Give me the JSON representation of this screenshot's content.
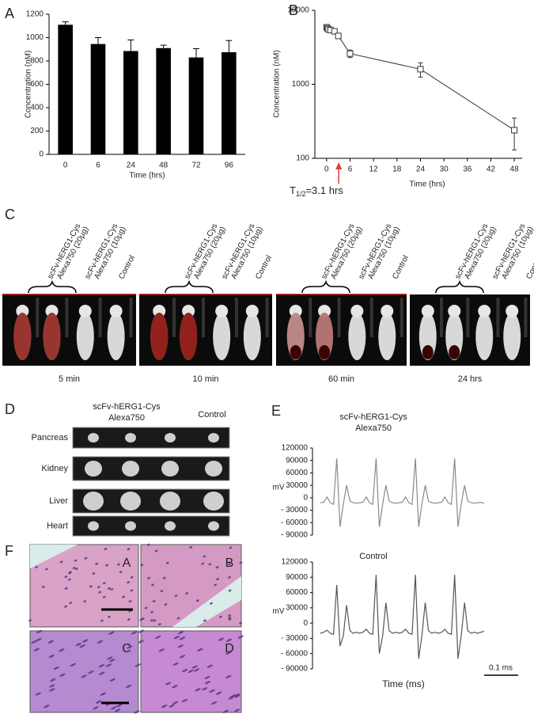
{
  "panel_letters": [
    "A",
    "B",
    "C",
    "D",
    "E",
    "F"
  ],
  "chart_data": [
    {
      "type": "bar",
      "ylabel": "Concentration (nM)",
      "xlabel": "Time (hrs)",
      "categories": [
        "0",
        "6",
        "24",
        "48",
        "72",
        "96"
      ],
      "values": [
        1110,
        945,
        885,
        910,
        830,
        875
      ],
      "errors": [
        25,
        55,
        95,
        25,
        75,
        100
      ],
      "color": "#000000",
      "ylim": [
        0,
        1200
      ],
      "yticks": [
        0,
        200,
        400,
        600,
        800,
        1000,
        1200
      ]
    },
    {
      "type": "line",
      "ylabel": "Concentration (nM)",
      "xlabel": "Time (hrs)",
      "x": [
        0,
        0.25,
        0.5,
        1,
        2,
        3,
        6,
        24,
        48
      ],
      "values": [
        5900,
        5700,
        5500,
        5400,
        5200,
        4500,
        2600,
        1600,
        240
      ],
      "errors": [
        300,
        300,
        300,
        300,
        250,
        300,
        300,
        350,
        110
      ],
      "color": "#333333",
      "log_y": true,
      "ylim": [
        100,
        10000
      ],
      "yticks": [
        100,
        1000,
        10000
      ],
      "xlim": [
        -3,
        50
      ],
      "xticks": [
        0,
        6,
        12,
        18,
        24,
        30,
        36,
        42,
        48
      ],
      "annotation": [
        "T",
        "1/2",
        "=3.1 hrs"
      ],
      "arrow_x": 3.1,
      "arrow_color": "#e8383d"
    },
    {
      "type": "line",
      "title": [
        "scFv-hERG1-Cys",
        "Alexa750"
      ],
      "ylabel": "mV",
      "color": "#8a8a8a",
      "ylim": [
        -90000,
        120000
      ],
      "yticks": [
        120000,
        90000,
        60000,
        30000,
        0,
        {
          "value": -30000,
          "label": "- 30000"
        },
        {
          "value": -60000,
          "label": "- 60000"
        },
        {
          "value": -90000,
          "label": "- 90000"
        }
      ],
      "values": [
        -12000,
        -11000,
        2000,
        -12000,
        -16000,
        95000,
        -70000,
        -15000,
        30000,
        -8000,
        -12000,
        -13000,
        -12000,
        -11000,
        2000,
        -12000,
        -16000,
        95000,
        -70000,
        -15000,
        30000,
        -8000,
        -12000,
        -13000,
        -12000,
        -11000,
        2000,
        -12000,
        -16000,
        95000,
        -70000,
        -15000,
        30000,
        -8000,
        -12000,
        -13000,
        -12000,
        -11000,
        2000,
        -12000,
        -16000,
        95000,
        -70000,
        -15000,
        30000,
        -8000,
        -12000,
        -13000,
        -12000,
        -11000,
        -13000
      ]
    },
    {
      "type": "line",
      "title": [
        "Control"
      ],
      "ylabel": "mV",
      "xlabel": "Time (ms)",
      "scale_bar": "0.1 ms",
      "color": "#555555",
      "ylim": [
        -90000,
        120000
      ],
      "yticks": [
        120000,
        90000,
        60000,
        30000,
        0,
        {
          "value": -30000,
          "label": "- 30000"
        },
        {
          "value": -60000,
          "label": "- 60000"
        },
        {
          "value": -90000,
          "label": "- 90000"
        }
      ],
      "values": [
        -20000,
        -18000,
        -14000,
        -20000,
        -22000,
        75000,
        -45000,
        -25000,
        35000,
        -15000,
        -20000,
        -18000,
        -20000,
        -18000,
        -12000,
        -20000,
        -22000,
        95000,
        -60000,
        -25000,
        40000,
        -15000,
        -20000,
        -18000,
        -20000,
        -18000,
        -12000,
        -20000,
        -22000,
        95000,
        -70000,
        -25000,
        40000,
        -15000,
        -20000,
        -18000,
        -20000,
        -18000,
        -12000,
        -20000,
        -22000,
        95000,
        -70000,
        -25000,
        40000,
        -15000,
        -20000,
        -18000,
        -20000,
        -18000,
        -16000
      ]
    }
  ],
  "panel_c": {
    "column_labels": [
      [
        "scFv-hERG1-Cys",
        "Alexa750 (20µg)"
      ],
      [
        "scFv-hERG1-Cys",
        "Alexa750 (10µg)"
      ],
      [
        "Control"
      ]
    ],
    "timepoints": [
      "5 min",
      "10 min",
      "60 min",
      "24 hrs"
    ]
  },
  "panel_d": {
    "header": [
      "scFv-hERG1-Cys",
      "Alexa750"
    ],
    "control": "Control",
    "organs": [
      "Pancreas",
      "Kidney",
      "Liver",
      "Heart"
    ]
  },
  "panel_f": {
    "labels": [
      "A",
      "B",
      "C",
      "D"
    ]
  }
}
